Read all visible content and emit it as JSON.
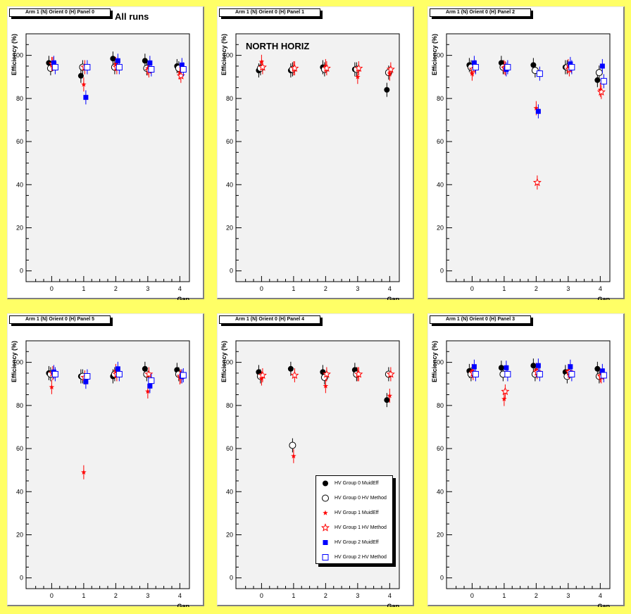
{
  "chart_data": [
    {
      "type": "scatter",
      "title": "Arm 1 (N) Orient 0 (H) Panel 0",
      "annotation": "All runs",
      "xlabel": "Gap",
      "ylabel": "Efficiency (%)",
      "ylim": [
        -5,
        110
      ],
      "xticks": [
        0,
        1,
        2,
        3,
        4
      ],
      "yticks": [
        0,
        20,
        40,
        60,
        80,
        100
      ],
      "series": [
        {
          "values": [
            96.5,
            90.5,
            98.5,
            97.5,
            95
          ]
        },
        {
          "values": [
            94,
            94.5,
            94.5,
            94,
            94
          ]
        },
        {
          "values": [
            96,
            86.5,
            96,
            94,
            92
          ]
        },
        {
          "values": [
            96,
            94.5,
            94.5,
            93,
            90.5
          ]
        },
        {
          "values": [
            96.5,
            80.5,
            97.5,
            96.5,
            95.5
          ]
        },
        {
          "values": [
            94.5,
            94.5,
            94.5,
            93.5,
            93.5
          ]
        }
      ]
    },
    {
      "type": "scatter",
      "title": "Arm 1 (N) Orient 0 (H) Panel 1",
      "annotation": "NORTH HORIZ",
      "xlabel": "Gap",
      "ylabel": "Efficiency (%)",
      "ylim": [
        -5,
        110
      ],
      "xticks": [
        0,
        1,
        2,
        3,
        4
      ],
      "yticks": [
        0,
        20,
        40,
        60,
        80,
        100
      ],
      "series": [
        {
          "values": [
            93,
            93,
            94.5,
            93.5,
            84
          ]
        },
        {
          "values": [
            94,
            93.5,
            93.5,
            93.5,
            92
          ]
        },
        {
          "values": [
            97,
            94,
            95,
            90,
            91.5
          ]
        },
        {
          "values": [
            94.5,
            94,
            94,
            94,
            93.5
          ]
        },
        {
          "values": [
            null,
            null,
            null,
            null,
            null
          ]
        },
        {
          "values": [
            null,
            null,
            null,
            null,
            null
          ]
        }
      ]
    },
    {
      "type": "scatter",
      "title": "Arm 1 (N) Orient 0 (H) Panel 2",
      "annotation": "",
      "xlabel": "Gap",
      "ylabel": "Efficiency (%)",
      "ylim": [
        -5,
        110
      ],
      "xticks": [
        0,
        1,
        2,
        3,
        4
      ],
      "yticks": [
        0,
        20,
        40,
        60,
        80,
        100
      ],
      "series": [
        {
          "values": [
            95.5,
            96.5,
            95.5,
            94.5,
            88.5
          ]
        },
        {
          "values": [
            94.5,
            94.5,
            93,
            94.5,
            92
          ]
        },
        {
          "values": [
            91.5,
            94.5,
            75.5,
            95,
            84
          ]
        },
        {
          "values": [
            93.5,
            94,
            41,
            93.5,
            83
          ]
        },
        {
          "values": [
            96.5,
            93.5,
            74,
            96,
            95
          ]
        },
        {
          "values": [
            94.5,
            94.5,
            91.5,
            94.5,
            88
          ]
        }
      ]
    },
    {
      "type": "scatter",
      "title": "Arm 1 (N) Orient 0 (H) Panel 5",
      "annotation": "",
      "xlabel": "Gap",
      "ylabel": "Efficiency (%)",
      "ylim": [
        -5,
        110
      ],
      "xticks": [
        0,
        1,
        2,
        3,
        4
      ],
      "yticks": [
        0,
        20,
        40,
        60,
        80,
        100
      ],
      "series": [
        {
          "values": [
            95,
            93.5,
            93.5,
            97,
            96.5
          ]
        },
        {
          "values": [
            94.5,
            93.5,
            94.5,
            94.5,
            94.5
          ]
        },
        {
          "values": [
            88.5,
            49,
            96,
            86.5,
            93
          ]
        },
        {
          "values": [
            95,
            93,
            94.5,
            94.5,
            93.5
          ]
        },
        {
          "values": [
            95.5,
            91,
            97,
            89,
            93.5
          ]
        },
        {
          "values": [
            94.5,
            93.5,
            94.5,
            91.5,
            94
          ]
        }
      ]
    },
    {
      "type": "scatter",
      "title": "Arm 1 (N) Orient 0 (H) Panel 4",
      "annotation": "",
      "xlabel": "Gap",
      "ylabel": "Efficiency (%)",
      "ylim": [
        -5,
        110
      ],
      "xticks": [
        0,
        1,
        2,
        3,
        4
      ],
      "yticks": [
        0,
        20,
        40,
        60,
        80,
        100
      ],
      "series": [
        {
          "values": [
            95.5,
            97,
            95.5,
            96.5,
            82.5
          ]
        },
        {
          "values": [
            93.5,
            61.5,
            93,
            94.5,
            94.5
          ]
        },
        {
          "values": [
            92.5,
            56.5,
            89,
            94.5,
            84.5
          ]
        },
        {
          "values": [
            94,
            94,
            94.5,
            94.5,
            94.5
          ]
        },
        {
          "values": [
            null,
            null,
            null,
            null,
            null
          ]
        },
        {
          "values": [
            null,
            null,
            null,
            null,
            null
          ]
        }
      ]
    },
    {
      "type": "scatter",
      "title": "Arm 1 (N) Orient 0 (H) Panel 3",
      "annotation": "",
      "xlabel": "Gap",
      "ylabel": "Efficiency (%)",
      "ylim": [
        -5,
        110
      ],
      "xticks": [
        0,
        1,
        2,
        3,
        4
      ],
      "yticks": [
        0,
        20,
        40,
        60,
        80,
        100
      ],
      "series": [
        {
          "values": [
            96,
            97.5,
            98.5,
            95.5,
            97
          ]
        },
        {
          "values": [
            94.5,
            94.5,
            94.5,
            93.5,
            93.5
          ]
        },
        {
          "values": [
            96,
            83,
            96.5,
            96,
            94
          ]
        },
        {
          "values": [
            95,
            86.5,
            95.5,
            95.5,
            93.5
          ]
        },
        {
          "values": [
            98,
            97.5,
            98.5,
            98,
            96
          ]
        },
        {
          "values": [
            94.5,
            94.5,
            94.5,
            94.5,
            94
          ]
        }
      ]
    }
  ],
  "legend": {
    "entries": [
      "HV Group 0 MuidEff",
      "HV Group 0 HV Method",
      "HV Group 1 MuidEff",
      "HV Group 1 HV Method",
      "HV Group 2 MuidEff",
      "HV Group 2 HV Method"
    ],
    "colors": [
      "#000000",
      "#000000",
      "#ff0000",
      "#ff0000",
      "#0000ff",
      "#0000ff"
    ],
    "markers": [
      "filled-circle",
      "open-circle",
      "filled-star",
      "open-star",
      "filled-square",
      "open-square"
    ]
  }
}
